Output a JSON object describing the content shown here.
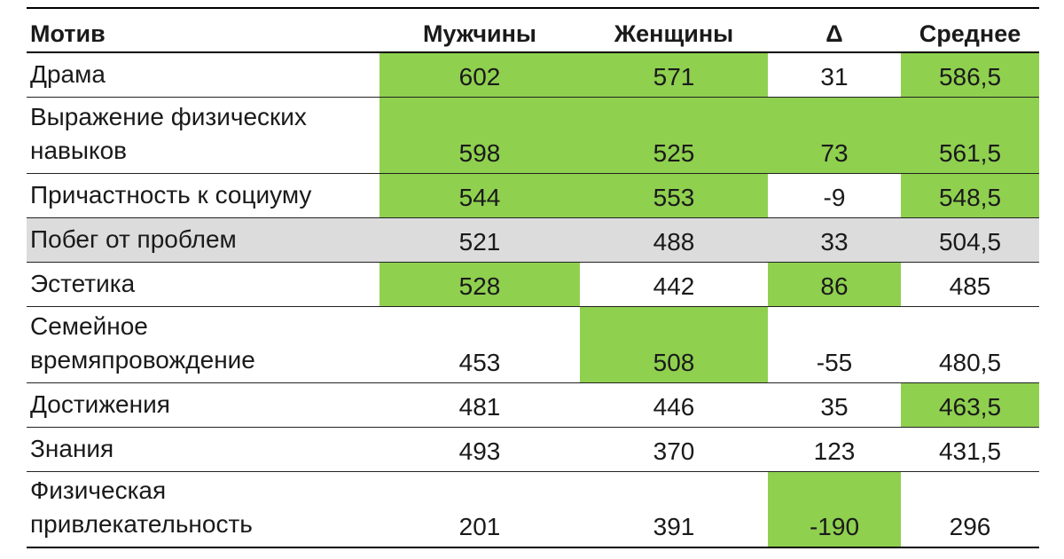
{
  "headers": {
    "motive": "Мотив",
    "men": "Мужчины",
    "women": "Женщины",
    "delta": "Δ",
    "avg": "Среднее"
  },
  "highlight_color": "#8fd04f",
  "gray_row_color": "#dcdcdc",
  "rows": [
    {
      "motive_line1": "Драма",
      "motive_line2": "",
      "men": "602",
      "women": "571",
      "delta": "31",
      "avg": "586,5",
      "highlight": {
        "men": true,
        "women": true,
        "delta": false,
        "avg": true
      },
      "gray": false
    },
    {
      "motive_line1": "Выражение физических",
      "motive_line2": "навыков",
      "men": "598",
      "women": "525",
      "delta": "73",
      "avg": "561,5",
      "highlight": {
        "men": true,
        "women": true,
        "delta": true,
        "avg": true
      },
      "gray": false
    },
    {
      "motive_line1": "Причастность к социуму",
      "motive_line2": "",
      "men": "544",
      "women": "553",
      "delta": "-9",
      "avg": "548,5",
      "highlight": {
        "men": true,
        "women": true,
        "delta": false,
        "avg": true
      },
      "gray": false
    },
    {
      "motive_line1": "Побег от проблем",
      "motive_line2": "",
      "men": "521",
      "women": "488",
      "delta": "33",
      "avg": "504,5",
      "highlight": {
        "men": false,
        "women": false,
        "delta": false,
        "avg": false
      },
      "gray": true
    },
    {
      "motive_line1": "Эстетика",
      "motive_line2": "",
      "men": "528",
      "women": "442",
      "delta": "86",
      "avg": "485",
      "highlight": {
        "men": true,
        "women": false,
        "delta": true,
        "avg": false
      },
      "gray": false
    },
    {
      "motive_line1": "Семейное",
      "motive_line2": "времяпровождение",
      "men": "453",
      "women": "508",
      "delta": "-55",
      "avg": "480,5",
      "highlight": {
        "men": false,
        "women": true,
        "delta": false,
        "avg": false
      },
      "gray": false
    },
    {
      "motive_line1": "Достижения",
      "motive_line2": "",
      "men": "481",
      "women": "446",
      "delta": "35",
      "avg": "463,5",
      "highlight": {
        "men": false,
        "women": false,
        "delta": false,
        "avg": true
      },
      "gray": false
    },
    {
      "motive_line1": "Знания",
      "motive_line2": "",
      "men": "493",
      "women": "370",
      "delta": "123",
      "avg": "431,5",
      "highlight": {
        "men": false,
        "women": false,
        "delta": false,
        "avg": false
      },
      "gray": false
    },
    {
      "motive_line1": "Физическая",
      "motive_line2": "привлекательность",
      "men": "201",
      "women": "391",
      "delta": "-190",
      "avg": "296",
      "highlight": {
        "men": false,
        "women": false,
        "delta": true,
        "avg": false
      },
      "gray": false
    }
  ]
}
